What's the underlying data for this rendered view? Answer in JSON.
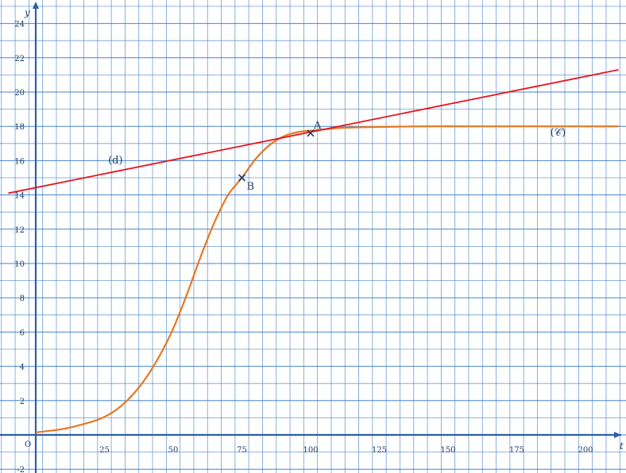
{
  "chart_data": {
    "type": "line",
    "title": "",
    "xlabel": "t",
    "ylabel": "y",
    "origin_label": "O",
    "xlim": [
      -12.5,
      215
    ],
    "ylim": [
      -2,
      25
    ],
    "grid": true,
    "x_ticks": [
      25,
      50,
      75,
      100,
      125,
      150,
      175,
      200
    ],
    "y_ticks": [
      -2,
      2,
      4,
      6,
      8,
      10,
      12,
      14,
      16,
      18,
      20,
      22,
      24
    ],
    "colors": {
      "grid": "#3f7fc6",
      "axes": "#2c5fa8",
      "curve": "#e87722",
      "tangent": "#e8141e",
      "text": "#1f3d6b"
    },
    "series": [
      {
        "name": "(𝒞)",
        "kind": "curve",
        "x": [
          0,
          10,
          20,
          25,
          30,
          35,
          40,
          45,
          50,
          55,
          60,
          65,
          70,
          75,
          80,
          85,
          90,
          95,
          100,
          105,
          110,
          120,
          140,
          160,
          180,
          200,
          212
        ],
        "y": [
          0.15,
          0.35,
          0.75,
          1.05,
          1.55,
          2.3,
          3.3,
          4.6,
          6.2,
          8.2,
          10.4,
          12.4,
          14.0,
          15.0,
          16.1,
          16.9,
          17.4,
          17.65,
          17.75,
          17.82,
          17.9,
          17.95,
          18.0,
          18.0,
          18.0,
          18.0,
          18.0
        ]
      },
      {
        "name": "(d)",
        "kind": "line",
        "x": [
          -10,
          212
        ],
        "y": [
          14.1,
          21.3
        ]
      }
    ],
    "points": [
      {
        "label": "A",
        "x": 100,
        "y": 17.6
      },
      {
        "label": "B",
        "x": 75,
        "y": 15.0
      }
    ]
  }
}
